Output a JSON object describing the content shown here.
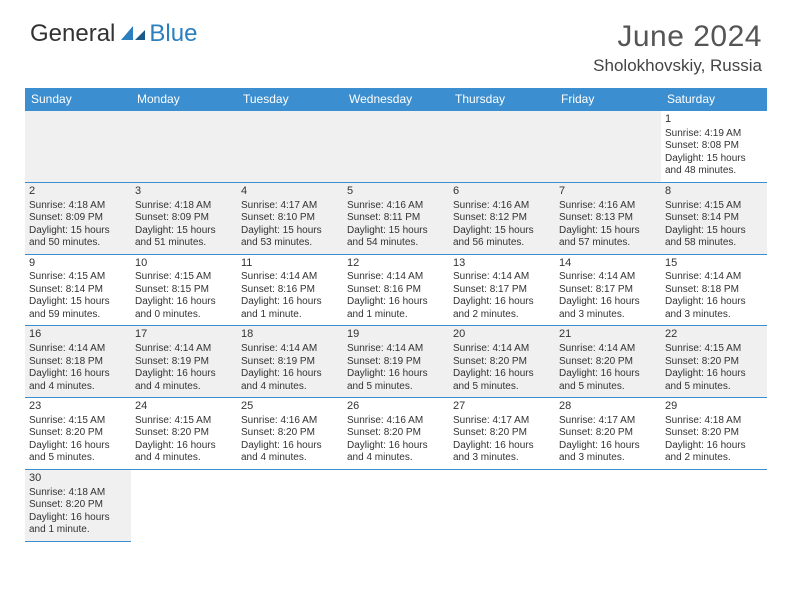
{
  "logo": {
    "part1": "General",
    "part2": "Blue"
  },
  "title": "June 2024",
  "location": "Sholokhovskiy, Russia",
  "colors": {
    "header_bg": "#3b8ecf",
    "header_text": "#ffffff",
    "border": "#3b8ecf",
    "alt_row_bg": "#f0f0f0",
    "text": "#333333",
    "title_text": "#555555"
  },
  "typography": {
    "title_fontsize": 30,
    "location_fontsize": 17,
    "dayhead_fontsize": 12,
    "cell_fontsize": 10
  },
  "day_headers": [
    "Sunday",
    "Monday",
    "Tuesday",
    "Wednesday",
    "Thursday",
    "Friday",
    "Saturday"
  ],
  "weeks": [
    [
      null,
      null,
      null,
      null,
      null,
      null,
      {
        "n": "1",
        "sunrise": "Sunrise: 4:19 AM",
        "sunset": "Sunset: 8:08 PM",
        "daylight": "Daylight: 15 hours and 48 minutes."
      }
    ],
    [
      {
        "n": "2",
        "sunrise": "Sunrise: 4:18 AM",
        "sunset": "Sunset: 8:09 PM",
        "daylight": "Daylight: 15 hours and 50 minutes."
      },
      {
        "n": "3",
        "sunrise": "Sunrise: 4:18 AM",
        "sunset": "Sunset: 8:09 PM",
        "daylight": "Daylight: 15 hours and 51 minutes."
      },
      {
        "n": "4",
        "sunrise": "Sunrise: 4:17 AM",
        "sunset": "Sunset: 8:10 PM",
        "daylight": "Daylight: 15 hours and 53 minutes."
      },
      {
        "n": "5",
        "sunrise": "Sunrise: 4:16 AM",
        "sunset": "Sunset: 8:11 PM",
        "daylight": "Daylight: 15 hours and 54 minutes."
      },
      {
        "n": "6",
        "sunrise": "Sunrise: 4:16 AM",
        "sunset": "Sunset: 8:12 PM",
        "daylight": "Daylight: 15 hours and 56 minutes."
      },
      {
        "n": "7",
        "sunrise": "Sunrise: 4:16 AM",
        "sunset": "Sunset: 8:13 PM",
        "daylight": "Daylight: 15 hours and 57 minutes."
      },
      {
        "n": "8",
        "sunrise": "Sunrise: 4:15 AM",
        "sunset": "Sunset: 8:14 PM",
        "daylight": "Daylight: 15 hours and 58 minutes."
      }
    ],
    [
      {
        "n": "9",
        "sunrise": "Sunrise: 4:15 AM",
        "sunset": "Sunset: 8:14 PM",
        "daylight": "Daylight: 15 hours and 59 minutes."
      },
      {
        "n": "10",
        "sunrise": "Sunrise: 4:15 AM",
        "sunset": "Sunset: 8:15 PM",
        "daylight": "Daylight: 16 hours and 0 minutes."
      },
      {
        "n": "11",
        "sunrise": "Sunrise: 4:14 AM",
        "sunset": "Sunset: 8:16 PM",
        "daylight": "Daylight: 16 hours and 1 minute."
      },
      {
        "n": "12",
        "sunrise": "Sunrise: 4:14 AM",
        "sunset": "Sunset: 8:16 PM",
        "daylight": "Daylight: 16 hours and 1 minute."
      },
      {
        "n": "13",
        "sunrise": "Sunrise: 4:14 AM",
        "sunset": "Sunset: 8:17 PM",
        "daylight": "Daylight: 16 hours and 2 minutes."
      },
      {
        "n": "14",
        "sunrise": "Sunrise: 4:14 AM",
        "sunset": "Sunset: 8:17 PM",
        "daylight": "Daylight: 16 hours and 3 minutes."
      },
      {
        "n": "15",
        "sunrise": "Sunrise: 4:14 AM",
        "sunset": "Sunset: 8:18 PM",
        "daylight": "Daylight: 16 hours and 3 minutes."
      }
    ],
    [
      {
        "n": "16",
        "sunrise": "Sunrise: 4:14 AM",
        "sunset": "Sunset: 8:18 PM",
        "daylight": "Daylight: 16 hours and 4 minutes."
      },
      {
        "n": "17",
        "sunrise": "Sunrise: 4:14 AM",
        "sunset": "Sunset: 8:19 PM",
        "daylight": "Daylight: 16 hours and 4 minutes."
      },
      {
        "n": "18",
        "sunrise": "Sunrise: 4:14 AM",
        "sunset": "Sunset: 8:19 PM",
        "daylight": "Daylight: 16 hours and 4 minutes."
      },
      {
        "n": "19",
        "sunrise": "Sunrise: 4:14 AM",
        "sunset": "Sunset: 8:19 PM",
        "daylight": "Daylight: 16 hours and 5 minutes."
      },
      {
        "n": "20",
        "sunrise": "Sunrise: 4:14 AM",
        "sunset": "Sunset: 8:20 PM",
        "daylight": "Daylight: 16 hours and 5 minutes."
      },
      {
        "n": "21",
        "sunrise": "Sunrise: 4:14 AM",
        "sunset": "Sunset: 8:20 PM",
        "daylight": "Daylight: 16 hours and 5 minutes."
      },
      {
        "n": "22",
        "sunrise": "Sunrise: 4:15 AM",
        "sunset": "Sunset: 8:20 PM",
        "daylight": "Daylight: 16 hours and 5 minutes."
      }
    ],
    [
      {
        "n": "23",
        "sunrise": "Sunrise: 4:15 AM",
        "sunset": "Sunset: 8:20 PM",
        "daylight": "Daylight: 16 hours and 5 minutes."
      },
      {
        "n": "24",
        "sunrise": "Sunrise: 4:15 AM",
        "sunset": "Sunset: 8:20 PM",
        "daylight": "Daylight: 16 hours and 4 minutes."
      },
      {
        "n": "25",
        "sunrise": "Sunrise: 4:16 AM",
        "sunset": "Sunset: 8:20 PM",
        "daylight": "Daylight: 16 hours and 4 minutes."
      },
      {
        "n": "26",
        "sunrise": "Sunrise: 4:16 AM",
        "sunset": "Sunset: 8:20 PM",
        "daylight": "Daylight: 16 hours and 4 minutes."
      },
      {
        "n": "27",
        "sunrise": "Sunrise: 4:17 AM",
        "sunset": "Sunset: 8:20 PM",
        "daylight": "Daylight: 16 hours and 3 minutes."
      },
      {
        "n": "28",
        "sunrise": "Sunrise: 4:17 AM",
        "sunset": "Sunset: 8:20 PM",
        "daylight": "Daylight: 16 hours and 3 minutes."
      },
      {
        "n": "29",
        "sunrise": "Sunrise: 4:18 AM",
        "sunset": "Sunset: 8:20 PM",
        "daylight": "Daylight: 16 hours and 2 minutes."
      }
    ],
    [
      {
        "n": "30",
        "sunrise": "Sunrise: 4:18 AM",
        "sunset": "Sunset: 8:20 PM",
        "daylight": "Daylight: 16 hours and 1 minute."
      },
      null,
      null,
      null,
      null,
      null,
      null
    ]
  ]
}
